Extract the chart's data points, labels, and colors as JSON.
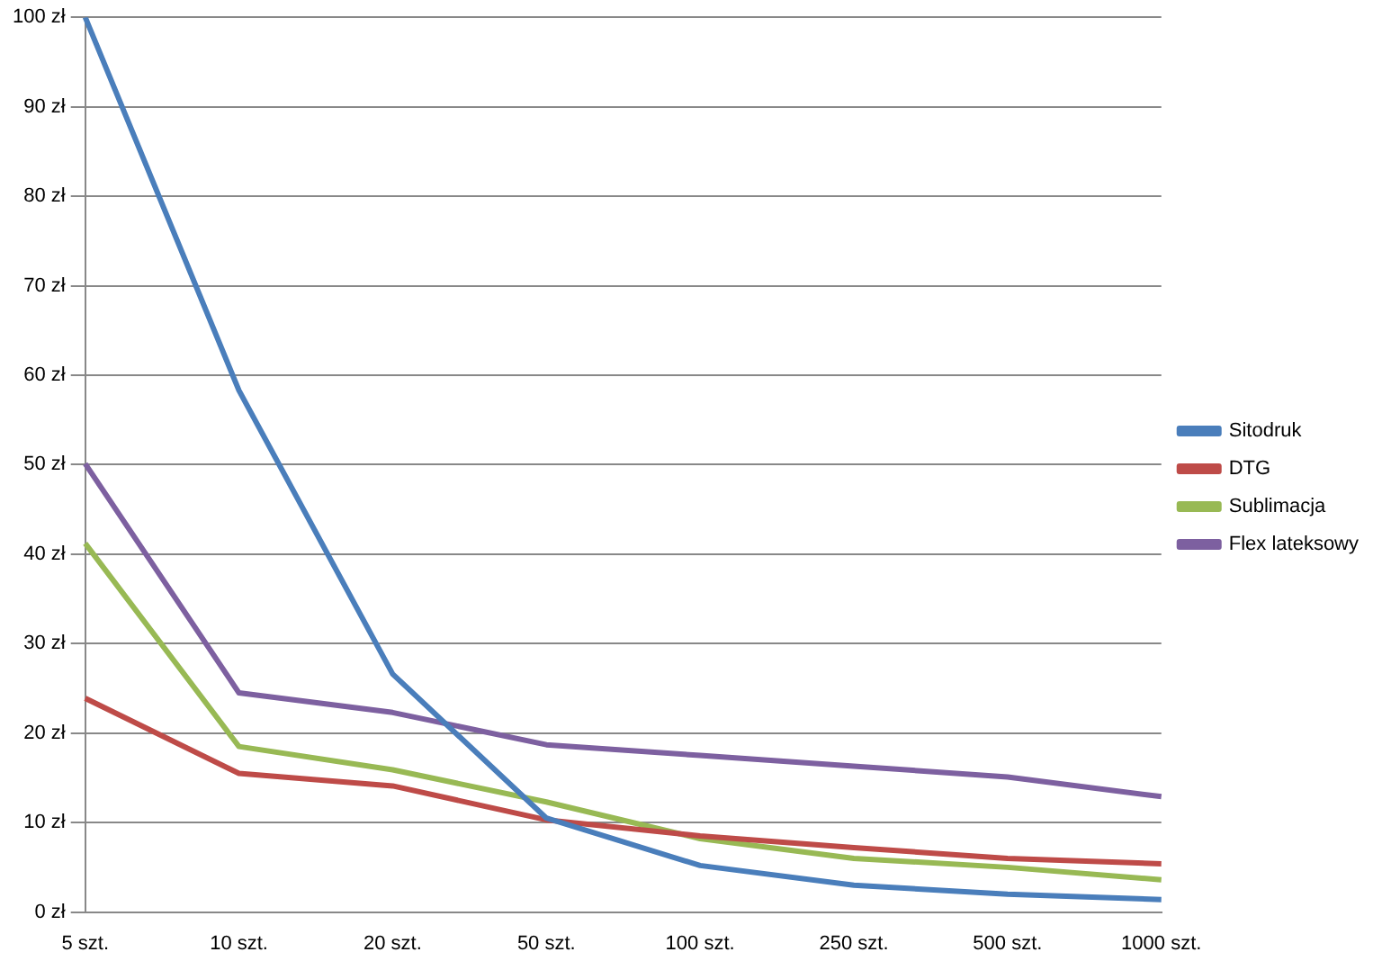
{
  "chart_data": {
    "type": "line",
    "categories": [
      "5 szt.",
      "10 szt.",
      "20 szt.",
      "50 szt.",
      "100 szt.",
      "250 szt.",
      "500 szt.",
      "1000 szt."
    ],
    "series": [
      {
        "name": "Sitodruk",
        "color": "#4a7ebb",
        "values": [
          100,
          58.3,
          26.6,
          10.5,
          5.2,
          3.0,
          2.0,
          1.4
        ]
      },
      {
        "name": "DTG",
        "color": "#be4b48",
        "values": [
          23.9,
          15.5,
          14.1,
          10.3,
          8.5,
          7.2,
          6.0,
          5.4
        ]
      },
      {
        "name": "Sublimacja",
        "color": "#98b954",
        "values": [
          41.2,
          18.5,
          15.9,
          12.3,
          8.2,
          6.0,
          5.0,
          3.6
        ]
      },
      {
        "name": "Flex lateksowy",
        "color": "#7d60a0",
        "values": [
          50.1,
          24.5,
          22.3,
          18.7,
          17.5,
          16.3,
          15.1,
          12.9
        ]
      }
    ],
    "ylim": [
      0,
      100
    ],
    "yticks": [
      {
        "value": 0,
        "label": "0 zł"
      },
      {
        "value": 10,
        "label": "10 zł"
      },
      {
        "value": 20,
        "label": "20 zł"
      },
      {
        "value": 30,
        "label": "30 zł"
      },
      {
        "value": 40,
        "label": "40 zł"
      },
      {
        "value": 50,
        "label": "50 zł"
      },
      {
        "value": 60,
        "label": "60 zł"
      },
      {
        "value": 70,
        "label": "70 zł"
      },
      {
        "value": 80,
        "label": "80 zł"
      },
      {
        "value": 90,
        "label": "90 zł"
      },
      {
        "value": 100,
        "label": "100 zł"
      }
    ],
    "grid": "y",
    "legend": "right",
    "marker": "none",
    "line_style": "solid"
  }
}
